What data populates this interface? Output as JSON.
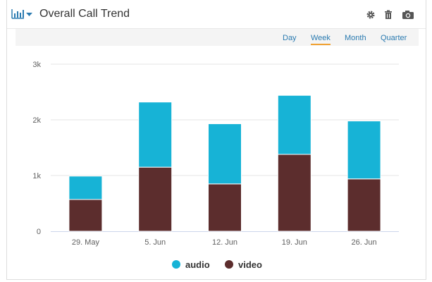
{
  "header": {
    "title": "Overall Call Trend",
    "chart_type_icon": "bar-chart-icon",
    "tools": [
      "gear-icon",
      "trash-icon",
      "camera-icon"
    ]
  },
  "range_buttons": {
    "day": "Day",
    "week": "Week",
    "month": "Month",
    "quarter": "Quarter",
    "active": "week"
  },
  "chart_data": {
    "type": "bar",
    "stacked": true,
    "categories": [
      "29. May",
      "5. Jun",
      "12. Jun",
      "19. Jun",
      "26. Jun"
    ],
    "series": [
      {
        "name": "video",
        "color": "#5c2d2d",
        "values": [
          570,
          1150,
          850,
          1380,
          940
        ]
      },
      {
        "name": "audio",
        "color": "#17b3d6",
        "values": [
          420,
          1170,
          1080,
          1060,
          1040
        ]
      }
    ],
    "y_ticks": [
      "0",
      "1k",
      "2k",
      "3k"
    ],
    "ylim": [
      0,
      3000
    ],
    "grid": true,
    "legend": "bottom-center",
    "legend_order": [
      "audio",
      "video"
    ]
  }
}
